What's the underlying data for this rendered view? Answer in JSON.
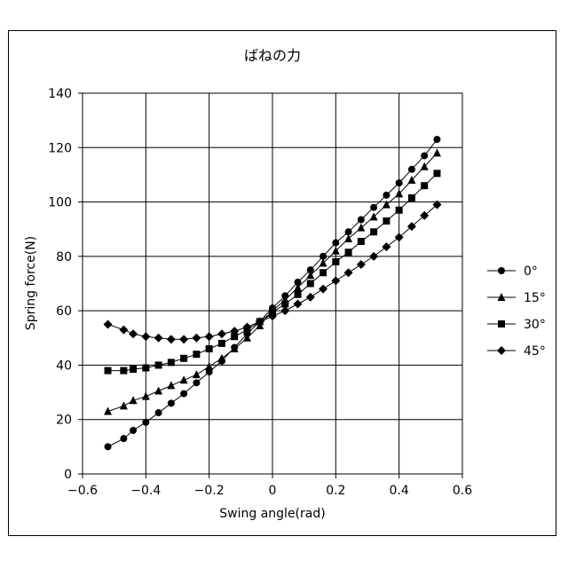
{
  "chart_data": {
    "type": "line",
    "title": "ばねの力",
    "xlabel": "Swing angle(rad)",
    "ylabel": "Spring force(N)",
    "xlim": [
      -0.6,
      0.6
    ],
    "ylim": [
      0,
      140
    ],
    "x_ticks": [
      "−0.6",
      "−0.4",
      "−0.2",
      "0",
      "0.2",
      "0.4",
      "0.6"
    ],
    "y_ticks": [
      "0",
      "20",
      "40",
      "60",
      "80",
      "100",
      "120",
      "140"
    ],
    "grid": true,
    "legend_position": "right",
    "x": [
      -0.52,
      -0.47,
      -0.44,
      -0.4,
      -0.36,
      -0.32,
      -0.28,
      -0.24,
      -0.2,
      -0.16,
      -0.12,
      -0.08,
      -0.04,
      0.0,
      0.04,
      0.08,
      0.12,
      0.16,
      0.2,
      0.24,
      0.28,
      0.32,
      0.36,
      0.4,
      0.44,
      0.48,
      0.52
    ],
    "series": [
      {
        "name": "0°",
        "marker": "circle",
        "values": [
          10,
          13,
          16,
          19,
          22.5,
          26,
          29.5,
          33.5,
          37.5,
          41.5,
          46.5,
          51.5,
          56,
          61,
          65.5,
          70.5,
          75,
          80,
          85,
          89,
          93.5,
          98,
          102.5,
          107,
          112,
          117,
          123
        ]
      },
      {
        "name": "15°",
        "marker": "triangle",
        "values": [
          23,
          25,
          27,
          28.5,
          30.5,
          32.5,
          34.5,
          36.5,
          39.5,
          42.5,
          46,
          50,
          54.5,
          60,
          64,
          68.5,
          73,
          77.5,
          82,
          86.5,
          90.5,
          94.5,
          99,
          103,
          108,
          113,
          118
        ]
      },
      {
        "name": "30°",
        "marker": "square",
        "values": [
          38,
          38,
          38.5,
          39,
          40,
          41,
          42.5,
          44,
          46,
          48,
          50.5,
          53,
          56,
          59.5,
          62.5,
          66,
          70,
          74,
          78,
          81.5,
          85.5,
          89,
          93,
          97,
          101.5,
          106,
          110.5
        ]
      },
      {
        "name": "45°",
        "marker": "diamond",
        "values": [
          55,
          53,
          51.5,
          50.5,
          50,
          49.5,
          49.5,
          50,
          50.5,
          51.5,
          52.5,
          54,
          56,
          58,
          60,
          62.5,
          65,
          68,
          71,
          74,
          77,
          80,
          83.5,
          87,
          91,
          95,
          99
        ]
      }
    ]
  }
}
